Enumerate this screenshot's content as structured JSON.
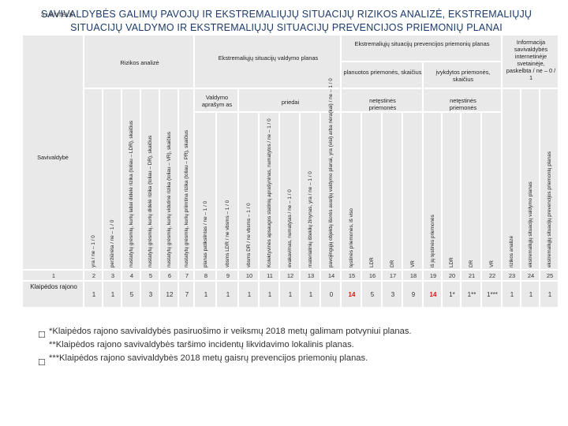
{
  "title": {
    "number": "3 LENTELĖ.",
    "text": "SAVIVALDYBĖS GALIMŲ PAVOJŲ IR EKSTREMALIŲJŲ SITUACIJŲ RIZIKOS ANALIZĖ, EKSTREMALIŲJŲ SITUACIJŲ VALDYMO IR EKSTREMALIŲJŲ SITUACIJŲ PREVENCIJOS PRIEMONIŲ PLANAI"
  },
  "headers": {
    "savivaldybe": "Savivaldybė",
    "rizikos_analize": "Rizikos analizė",
    "valdymo_planas": "Ekstremaliųjų situacijų valdymo planas",
    "prevencijos_planas": "Ekstremaliųjų situacijų prevencijos priemonių planas",
    "informacija": "Informacija savivaldybės internetinėje svetainėje, paskelbta / ne – 0 / 1",
    "planuotos": "planuotos priemonės, skaičius",
    "ivykdytos": "įvykdytos priemonės, skaičius",
    "netestines_1": "netęstinės priemonės",
    "netestines_2": "netęstinės priemonės",
    "valdymo_aprasymas": "Valdymo aprašym as",
    "priedai": "priedai"
  },
  "vertical_labels": [
    "yra / ne – 1 / 0",
    "peržiūrėta / ne – 1 / 0",
    "nustatytų grėsmių, kurių labai didelė rizika (toliau – LDR), skaičius",
    "nustatytų grėsmių, kurių didelė rizika (toliau – DR), skaičius",
    "nustatytų grėsmių, kurių vidutinė rizika (toliau – VR), skaičius",
    "nustatytų grėsmių, kurių priimtina rizika (toliau – PR), skaičius",
    "planas patikslintas / ne – 1 / 0",
    "vbsms LDR / ne vbsms – 1 / 0",
    "vbsms DR / ne vbsms – 1 / 0",
    "Kolektyvinės apsaugos statinių aprašyninas, numatytos / ne – 1 / 0",
    "evakavimas, numatytas / ne – 1 / 0",
    "materialinių išteklių žinynas, yra / ne – 1 / 0",
    "pavojingųjų objektų išorės avarijų valdymo planai, yra (visi) arba nėra(kai) / ne – 1 / 0",
    "tęstinės priemonės, iš viso",
    "LDR",
    "DR",
    "VR",
    "iš jų tęstinės priemonės",
    "LDR",
    "DR",
    "VR",
    "rizikos analizė",
    "ekstremaliųjų situacijų valdymo planas",
    "ekstremaliųjų situacijų prevencijos priemonių planas"
  ],
  "column_numbers": [
    "1",
    "2",
    "3",
    "4",
    "5",
    "6",
    "7",
    "8",
    "9",
    "10",
    "11",
    "12",
    "13",
    "14",
    "15",
    "16",
    "17",
    "18",
    "19",
    "20",
    "21",
    "22",
    "23",
    "24",
    "25"
  ],
  "row": {
    "name": "Klaipėdos rajono",
    "values": [
      "1",
      "1",
      "5",
      "3",
      "12",
      "7",
      "1",
      "1",
      "1",
      "1",
      "1",
      "1",
      "0",
      "14",
      "5",
      "3",
      "9",
      "14",
      "1*",
      "1**",
      "1***",
      "1",
      "1",
      "1"
    ]
  },
  "notes": [
    "*Klaipėdos rajono savivaldybės pasiruošimo ir veiksmų 2018 metų galimam potvyniui planas.",
    "**Klaipėdos rajono savivaldybės taršimo incidentų likvidavimo lokalinis planas.",
    "***Klaipėdos rajono savivaldybės 2018 metų gaisrų prevencijos priemonių planas."
  ],
  "colors": {
    "title": "#1b3a6b",
    "highlight": "#d11111",
    "cell": "#e9e9e9"
  }
}
